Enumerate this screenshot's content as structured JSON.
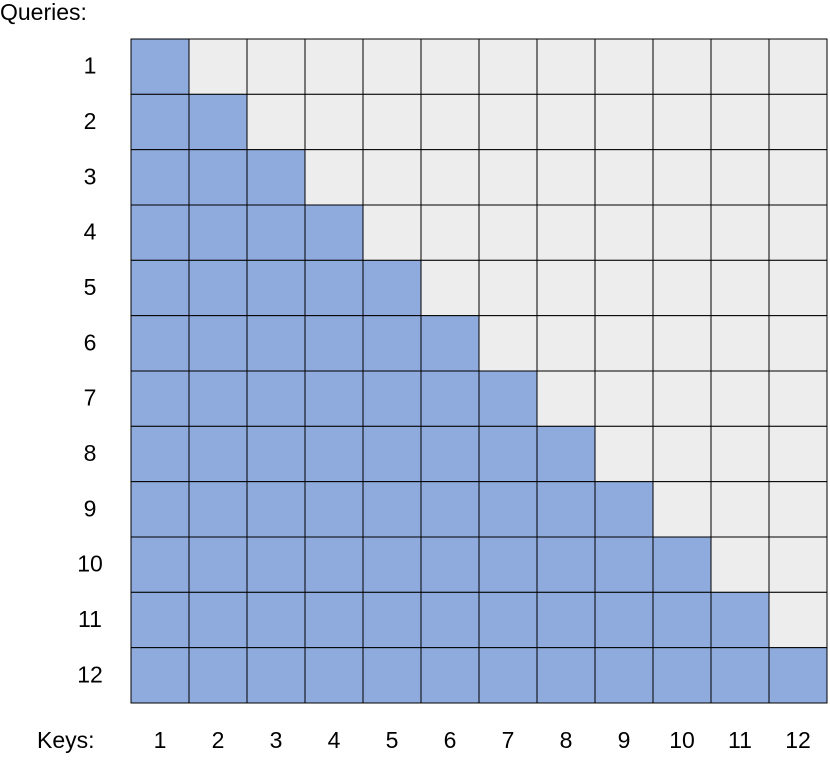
{
  "queries": {
    "label": "Queries:",
    "items": [
      "1",
      "2",
      "3",
      "4",
      "5",
      "6",
      "7",
      "8",
      "9",
      "10",
      "11",
      "12"
    ]
  },
  "keys": {
    "label": "Keys:",
    "items": [
      "1",
      "2",
      "3",
      "4",
      "5",
      "6",
      "7",
      "8",
      "9",
      "10",
      "11",
      "12"
    ]
  }
}
